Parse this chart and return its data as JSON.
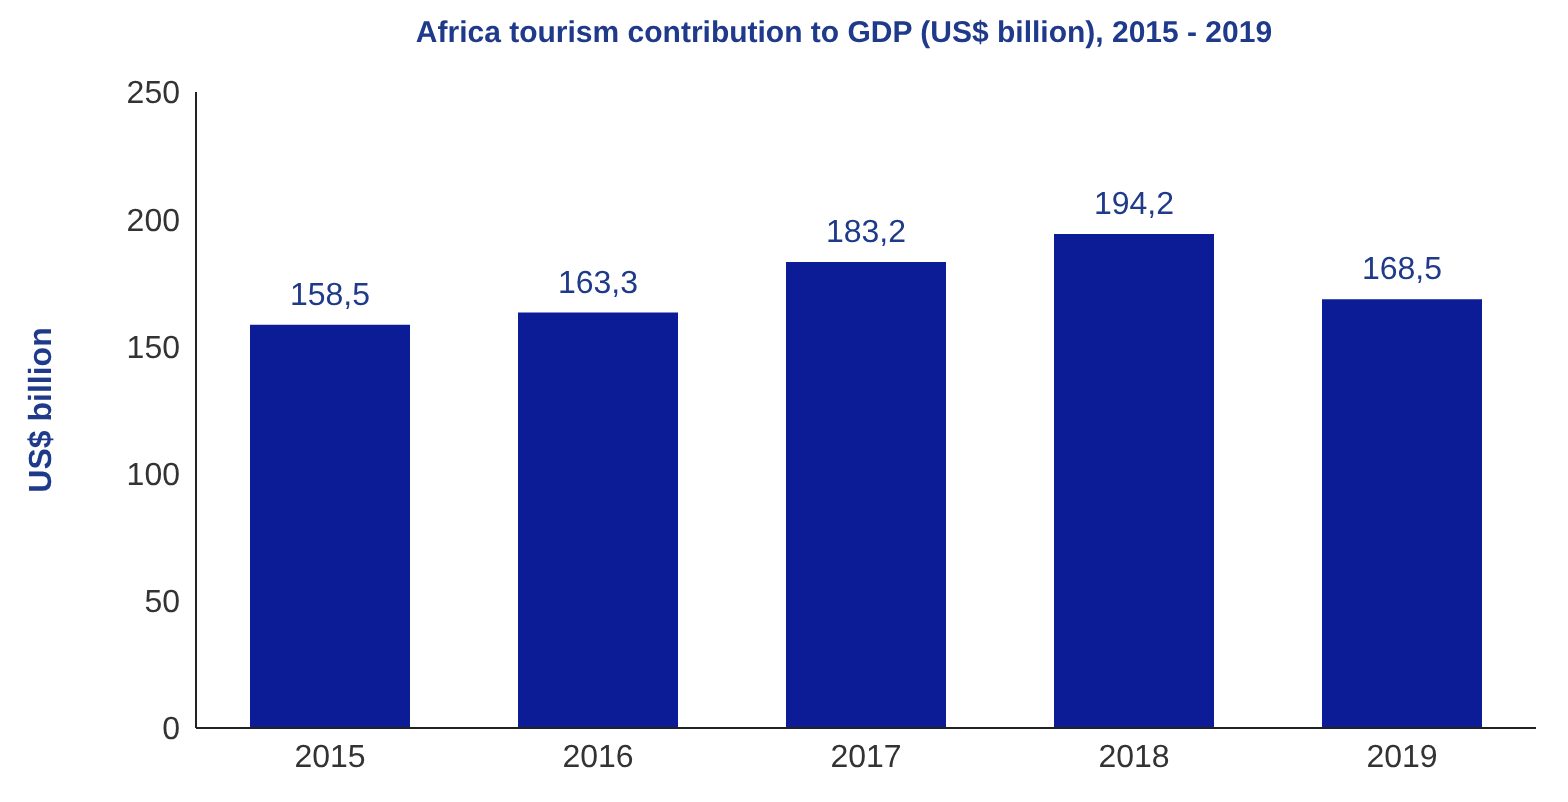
{
  "chart_data": {
    "type": "bar",
    "title": "Africa tourism contribution to GDP (US$ billion), 2015 - 2019",
    "ylabel": "US$ billion",
    "categories": [
      "2015",
      "2016",
      "2017",
      "2018",
      "2019"
    ],
    "values": [
      158.5,
      163.3,
      183.2,
      194.2,
      168.5
    ],
    "value_labels": [
      "158,5",
      "163,3",
      "183,2",
      "194,2",
      "168,5"
    ],
    "color": "#0c1c96",
    "ylim": [
      0,
      250
    ],
    "yticks": [
      0,
      50,
      100,
      150,
      200,
      250
    ],
    "grid": false,
    "legend": false
  }
}
